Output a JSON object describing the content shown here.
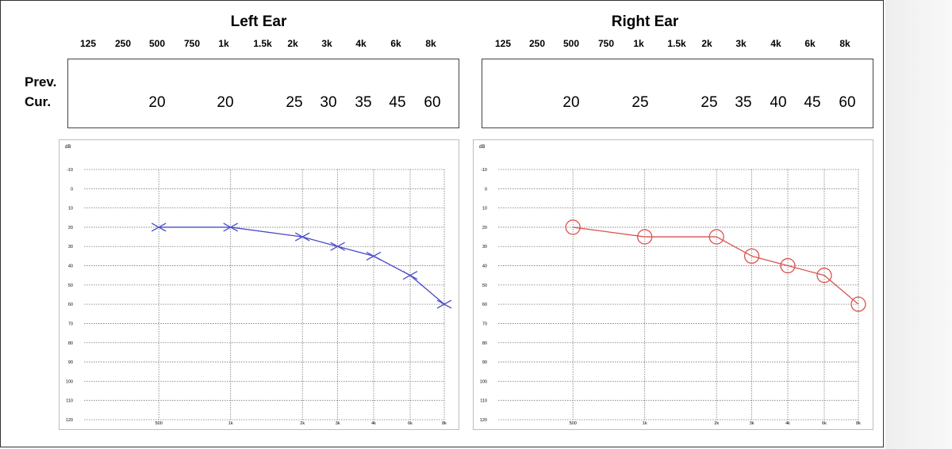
{
  "frequency_labels": [
    "125",
    "250",
    "500",
    "750",
    "1k",
    "1.5k",
    "2k",
    "3k",
    "4k",
    "6k",
    "8k"
  ],
  "row_labels": {
    "prev": "Prev.",
    "cur": "Cur."
  },
  "left": {
    "title": "Left Ear",
    "prev_values": [
      "",
      "",
      "",
      "",
      "",
      "",
      "",
      "",
      "",
      "",
      ""
    ],
    "cur_values": [
      "",
      "",
      "20",
      "",
      "20",
      "",
      "25",
      "30",
      "35",
      "45",
      "60"
    ]
  },
  "right": {
    "title": "Right Ear",
    "prev_values": [
      "",
      "",
      "",
      "",
      "",
      "",
      "",
      "",
      "",
      "",
      ""
    ],
    "cur_values": [
      "",
      "",
      "20",
      "",
      "25",
      "",
      "25",
      "35",
      "40",
      "45",
      "60"
    ]
  },
  "chart_data": [
    {
      "type": "line",
      "marker": "cross",
      "ylabel": "dB",
      "ylim": [
        120,
        -10
      ],
      "y_ticks": [
        "-10",
        "0",
        "10",
        "20",
        "30",
        "40",
        "50",
        "60",
        "70",
        "80",
        "90",
        "100",
        "110",
        "120"
      ],
      "x_ticks": [
        "500",
        "1k",
        "2k",
        "3k",
        "4k",
        "6k",
        "8k"
      ],
      "grid": true,
      "color": "#4a4ac8",
      "x": [
        "500",
        "1k",
        "2k",
        "3k",
        "4k",
        "6k",
        "8k"
      ],
      "values": [
        20,
        20,
        25,
        30,
        35,
        45,
        60
      ]
    },
    {
      "type": "line",
      "marker": "circle",
      "ylabel": "dB",
      "ylim": [
        120,
        -10
      ],
      "y_ticks": [
        "-10",
        "0",
        "10",
        "20",
        "30",
        "40",
        "50",
        "60",
        "70",
        "80",
        "90",
        "100",
        "110",
        "120"
      ],
      "x_ticks": [
        "500",
        "1k",
        "2k",
        "3k",
        "4k",
        "6k",
        "8k"
      ],
      "grid": true,
      "color": "#d9534f",
      "x": [
        "500",
        "1k",
        "2k",
        "3k",
        "4k",
        "6k",
        "8k"
      ],
      "values": [
        20,
        25,
        25,
        35,
        40,
        45,
        60
      ]
    }
  ]
}
